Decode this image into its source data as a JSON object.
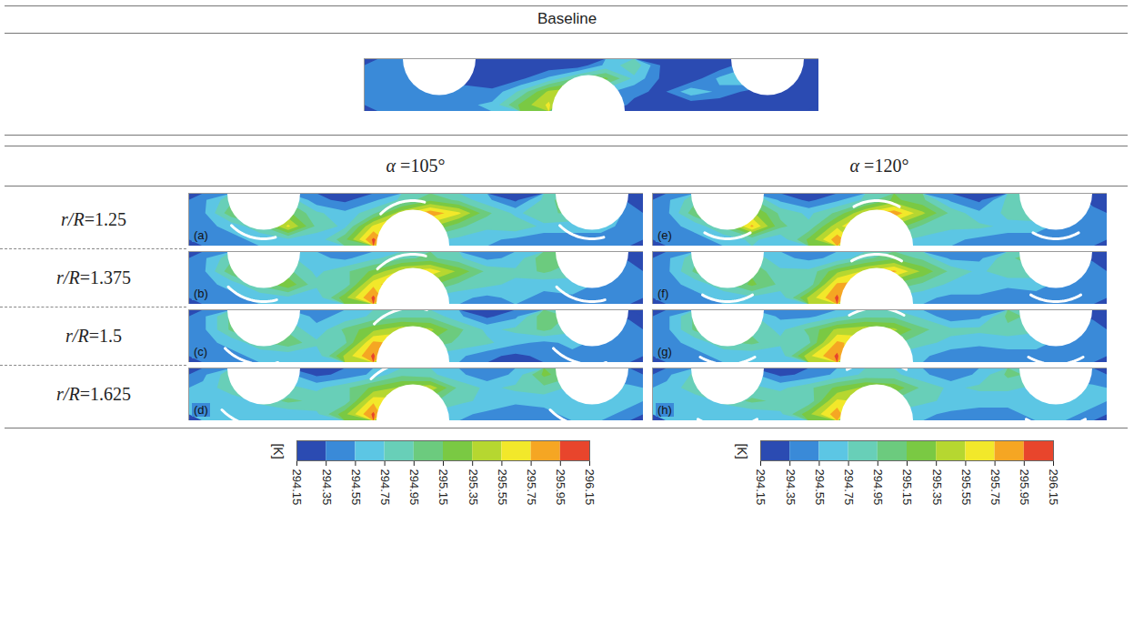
{
  "chart_data": {
    "type": "contour",
    "baseline": {
      "title": "Baseline",
      "values": [
        [
          294.5,
          294.5,
          294.4,
          294.4,
          294.2,
          294.2,
          294.2,
          294.2,
          294.6,
          294.9,
          294.3,
          294.2,
          294.2,
          294.5,
          294.4,
          294.2
        ],
        [
          294.5,
          294.5,
          294.5,
          294.2,
          294.2,
          294.3,
          294.6,
          295.0,
          295.2,
          294.7,
          294.3,
          294.2,
          294.6,
          294.8,
          294.4,
          294.2
        ],
        [
          294.5,
          294.5,
          294.5,
          294.5,
          294.4,
          294.8,
          295.4,
          295.5,
          294.6,
          294.4,
          294.3,
          294.7,
          294.5,
          294.3,
          294.2,
          294.2
        ],
        [
          294.5,
          294.5,
          294.5,
          294.5,
          294.6,
          295.2,
          295.6,
          294.5,
          294.5,
          294.3,
          294.2,
          294.2,
          294.2,
          294.3,
          294.2,
          294.2
        ]
      ]
    },
    "rows": [
      {
        "label": "r/R=1.25",
        "r_over_R": 1.25
      },
      {
        "label": "r/R=1.375",
        "r_over_R": 1.375
      },
      {
        "label": "r/R=1.5",
        "r_over_R": 1.5
      },
      {
        "label": "r/R=1.625",
        "r_over_R": 1.625
      }
    ],
    "columns": [
      {
        "label": "α =105°",
        "alpha": 105,
        "panels": [
          {
            "label": "(a)",
            "values": [
              [
                294.5,
                294.9,
                295.3,
                294.9,
                294.4,
                294.3,
                294.5,
                294.8,
                295.1,
                294.9,
                294.6,
                294.3,
                294.8,
                295.2,
                294.6,
                294.3
              ],
              [
                294.5,
                295.1,
                295.4,
                295.2,
                294.8,
                294.6,
                294.9,
                295.5,
                295.9,
                295.6,
                295.0,
                294.7,
                294.9,
                295.0,
                294.7,
                294.5
              ],
              [
                294.5,
                294.6,
                294.9,
                295.6,
                294.9,
                294.7,
                295.6,
                295.8,
                295.4,
                295.0,
                294.8,
                294.9,
                294.7,
                294.6,
                294.6,
                294.5
              ],
              [
                294.5,
                294.5,
                294.6,
                294.7,
                294.6,
                295.1,
                296.0,
                295.3,
                294.8,
                294.7,
                294.6,
                294.5,
                294.4,
                294.5,
                294.5,
                294.4
              ]
            ]
          },
          {
            "label": "(b)",
            "values": [
              [
                294.5,
                294.9,
                295.2,
                294.8,
                294.6,
                294.5,
                294.7,
                294.9,
                295.0,
                294.8,
                294.5,
                294.6,
                295.1,
                295.0,
                294.5,
                294.3
              ],
              [
                294.5,
                295.1,
                295.3,
                295.0,
                294.7,
                294.9,
                295.2,
                295.6,
                295.7,
                295.3,
                294.9,
                294.8,
                295.0,
                294.8,
                294.6,
                294.5
              ],
              [
                294.5,
                294.6,
                295.0,
                295.3,
                294.8,
                294.8,
                295.7,
                295.9,
                295.2,
                294.9,
                294.8,
                294.7,
                294.6,
                294.7,
                294.5,
                294.5
              ],
              [
                294.5,
                294.5,
                294.6,
                294.7,
                294.6,
                295.3,
                296.0,
                295.1,
                294.7,
                294.6,
                294.5,
                294.6,
                294.5,
                294.5,
                294.4,
                294.4
              ]
            ]
          },
          {
            "label": "(c)",
            "values": [
              [
                294.5,
                295.0,
                295.2,
                294.7,
                294.5,
                294.6,
                294.8,
                294.9,
                294.9,
                294.6,
                294.3,
                294.5,
                295.1,
                294.9,
                294.4,
                294.3
              ],
              [
                294.5,
                295.0,
                295.2,
                294.9,
                294.6,
                295.0,
                295.3,
                295.5,
                295.4,
                295.0,
                294.7,
                294.8,
                295.0,
                294.8,
                294.6,
                294.5
              ],
              [
                294.5,
                294.6,
                294.9,
                295.1,
                294.8,
                294.9,
                295.8,
                295.7,
                295.1,
                294.9,
                294.8,
                294.6,
                294.5,
                294.6,
                294.5,
                294.5
              ],
              [
                294.5,
                294.5,
                294.6,
                294.6,
                294.6,
                295.4,
                296.0,
                295.0,
                294.7,
                294.6,
                294.4,
                294.3,
                294.4,
                294.5,
                294.5,
                294.4
              ]
            ]
          },
          {
            "label": "(d)",
            "values": [
              [
                294.5,
                294.9,
                295.1,
                294.6,
                294.3,
                294.4,
                294.6,
                294.9,
                294.8,
                294.6,
                294.4,
                294.6,
                295.2,
                295.0,
                294.5,
                294.4
              ],
              [
                294.6,
                294.9,
                295.0,
                294.8,
                294.7,
                294.9,
                295.2,
                295.4,
                295.5,
                294.9,
                294.7,
                294.8,
                294.9,
                294.7,
                294.6,
                294.6
              ],
              [
                294.6,
                294.6,
                294.8,
                295.0,
                294.9,
                294.8,
                295.7,
                295.6,
                295.0,
                294.8,
                294.7,
                294.6,
                294.6,
                294.6,
                294.6,
                294.6
              ],
              [
                294.6,
                294.6,
                294.6,
                294.6,
                294.7,
                295.3,
                296.0,
                294.9,
                294.7,
                294.6,
                294.5,
                294.4,
                294.5,
                294.6,
                294.6,
                294.5
              ]
            ]
          }
        ]
      },
      {
        "label": "α =120°",
        "alpha": 120,
        "panels": [
          {
            "label": "(e)",
            "values": [
              [
                294.5,
                294.9,
                295.3,
                295.0,
                294.5,
                294.3,
                294.5,
                294.8,
                295.2,
                295.0,
                294.5,
                294.3,
                294.8,
                295.1,
                294.5,
                294.3
              ],
              [
                294.5,
                295.1,
                295.5,
                295.4,
                294.9,
                294.7,
                295.0,
                295.6,
                295.9,
                295.4,
                294.9,
                294.6,
                294.8,
                295.0,
                294.7,
                294.4
              ],
              [
                294.5,
                294.6,
                295.0,
                295.8,
                295.0,
                294.8,
                295.5,
                295.8,
                295.3,
                294.9,
                294.8,
                294.8,
                294.7,
                294.6,
                294.5,
                294.5
              ],
              [
                294.5,
                294.5,
                294.6,
                294.8,
                294.6,
                295.2,
                295.9,
                295.2,
                294.8,
                294.7,
                294.6,
                294.5,
                294.4,
                294.5,
                294.5,
                294.4
              ]
            ]
          },
          {
            "label": "(f)",
            "values": [
              [
                294.5,
                294.9,
                295.2,
                294.9,
                294.6,
                294.5,
                294.6,
                294.9,
                295.1,
                294.9,
                294.5,
                294.5,
                294.9,
                295.1,
                294.5,
                294.3
              ],
              [
                294.5,
                295.0,
                295.3,
                295.1,
                294.8,
                294.8,
                295.3,
                295.6,
                295.8,
                295.3,
                294.9,
                294.7,
                294.9,
                294.9,
                294.6,
                294.5
              ],
              [
                294.5,
                294.6,
                294.9,
                295.2,
                294.9,
                294.8,
                295.8,
                295.8,
                295.1,
                294.9,
                294.7,
                294.7,
                294.6,
                294.6,
                294.5,
                294.5
              ],
              [
                294.5,
                294.5,
                294.6,
                294.7,
                294.6,
                295.4,
                296.0,
                295.0,
                294.7,
                294.6,
                294.5,
                294.5,
                294.4,
                294.5,
                294.4,
                294.4
              ]
            ]
          },
          {
            "label": "(g)",
            "values": [
              [
                294.5,
                295.0,
                295.2,
                294.8,
                294.5,
                294.5,
                294.7,
                294.9,
                294.9,
                294.7,
                294.4,
                294.5,
                295.0,
                294.9,
                294.4,
                294.3
              ],
              [
                294.5,
                295.0,
                295.1,
                294.9,
                294.7,
                295.0,
                295.4,
                295.5,
                295.4,
                295.0,
                294.8,
                294.8,
                294.9,
                294.8,
                294.6,
                294.5
              ],
              [
                294.5,
                294.6,
                294.9,
                295.0,
                294.8,
                294.9,
                295.8,
                295.6,
                295.0,
                294.8,
                294.7,
                294.6,
                294.6,
                294.6,
                294.5,
                294.5
              ],
              [
                294.5,
                294.5,
                294.6,
                294.6,
                294.6,
                295.5,
                296.0,
                294.9,
                294.7,
                294.6,
                294.4,
                294.4,
                294.5,
                294.5,
                294.5,
                294.4
              ]
            ]
          },
          {
            "label": "(h)",
            "values": [
              [
                294.5,
                294.8,
                295.0,
                294.6,
                294.3,
                294.4,
                294.6,
                294.8,
                294.8,
                294.6,
                294.4,
                294.6,
                295.0,
                294.9,
                294.5,
                294.4
              ],
              [
                294.6,
                294.9,
                295.0,
                294.8,
                294.7,
                294.9,
                295.2,
                295.4,
                295.3,
                294.9,
                294.7,
                294.8,
                294.8,
                294.7,
                294.6,
                294.6
              ],
              [
                294.6,
                294.6,
                294.8,
                295.0,
                294.9,
                294.8,
                295.6,
                295.5,
                294.9,
                294.8,
                294.7,
                294.6,
                294.6,
                294.6,
                294.6,
                294.6
              ],
              [
                294.6,
                294.6,
                294.6,
                294.6,
                294.7,
                295.3,
                295.9,
                294.9,
                294.7,
                294.6,
                294.5,
                294.5,
                294.5,
                294.6,
                294.6,
                294.5
              ]
            ]
          }
        ]
      }
    ],
    "colorbar": {
      "label": "[K]",
      "range": [
        294.15,
        296.15
      ],
      "ticks": [
        294.15,
        294.35,
        294.55,
        294.75,
        294.95,
        295.15,
        295.35,
        295.55,
        295.75,
        295.95,
        296.15
      ],
      "colors": [
        "#2b4bb2",
        "#3a8ad8",
        "#5cc6e4",
        "#68cfb8",
        "#6ccb7e",
        "#7ac943",
        "#b6d730",
        "#f2e82a",
        "#f5a623",
        "#e8452c"
      ]
    }
  }
}
